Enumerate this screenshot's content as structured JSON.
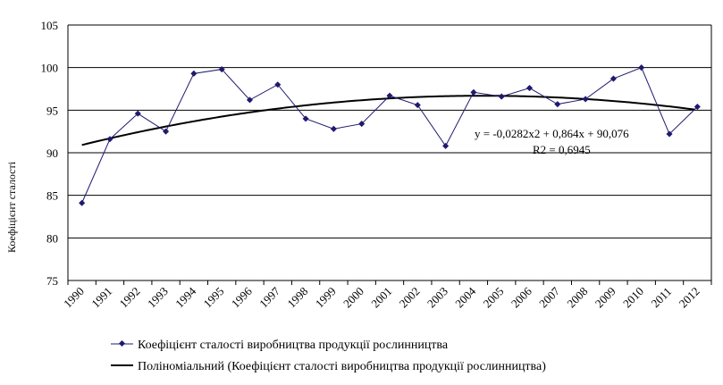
{
  "chart_data": {
    "type": "line",
    "x": [
      "1990",
      "1991",
      "1992",
      "1993",
      "1994",
      "1995",
      "1996",
      "1997",
      "1998",
      "1999",
      "2000",
      "2001",
      "2002",
      "2003",
      "2004",
      "2005",
      "2006",
      "2007",
      "2008",
      "2009",
      "2010",
      "2011",
      "2012"
    ],
    "series": [
      {
        "name": "Коефіцієнт сталості виробництва продукції рослинництва",
        "values": [
          84.1,
          91.6,
          94.6,
          92.5,
          99.3,
          99.8,
          96.2,
          98.0,
          94.0,
          92.8,
          93.4,
          96.7,
          95.6,
          90.8,
          97.1,
          96.6,
          97.6,
          95.7,
          96.3,
          98.7,
          100.0,
          92.2,
          95.4
        ],
        "color": "#1f1a6e",
        "marker": "diamond"
      },
      {
        "name": "Поліноміальний (Коефіцієнт сталості виробництва продукції рослинництва)",
        "trendline": "polynomial",
        "coefficients": {
          "a": -0.0282,
          "b": 0.864,
          "c": 90.076
        },
        "color": "#000000"
      }
    ],
    "ylim": [
      75,
      105
    ],
    "yticks": [
      "75",
      "80",
      "85",
      "90",
      "95",
      "100",
      "105"
    ],
    "ylabel": "Коефіцієнт сталості",
    "xlabel": "",
    "grid": "horizontal",
    "legend_position": "bottom",
    "annotation": {
      "equation": "y = -0,0282x2 + 0,864x + 90,076",
      "r_squared": "R2 = 0,6945"
    }
  }
}
